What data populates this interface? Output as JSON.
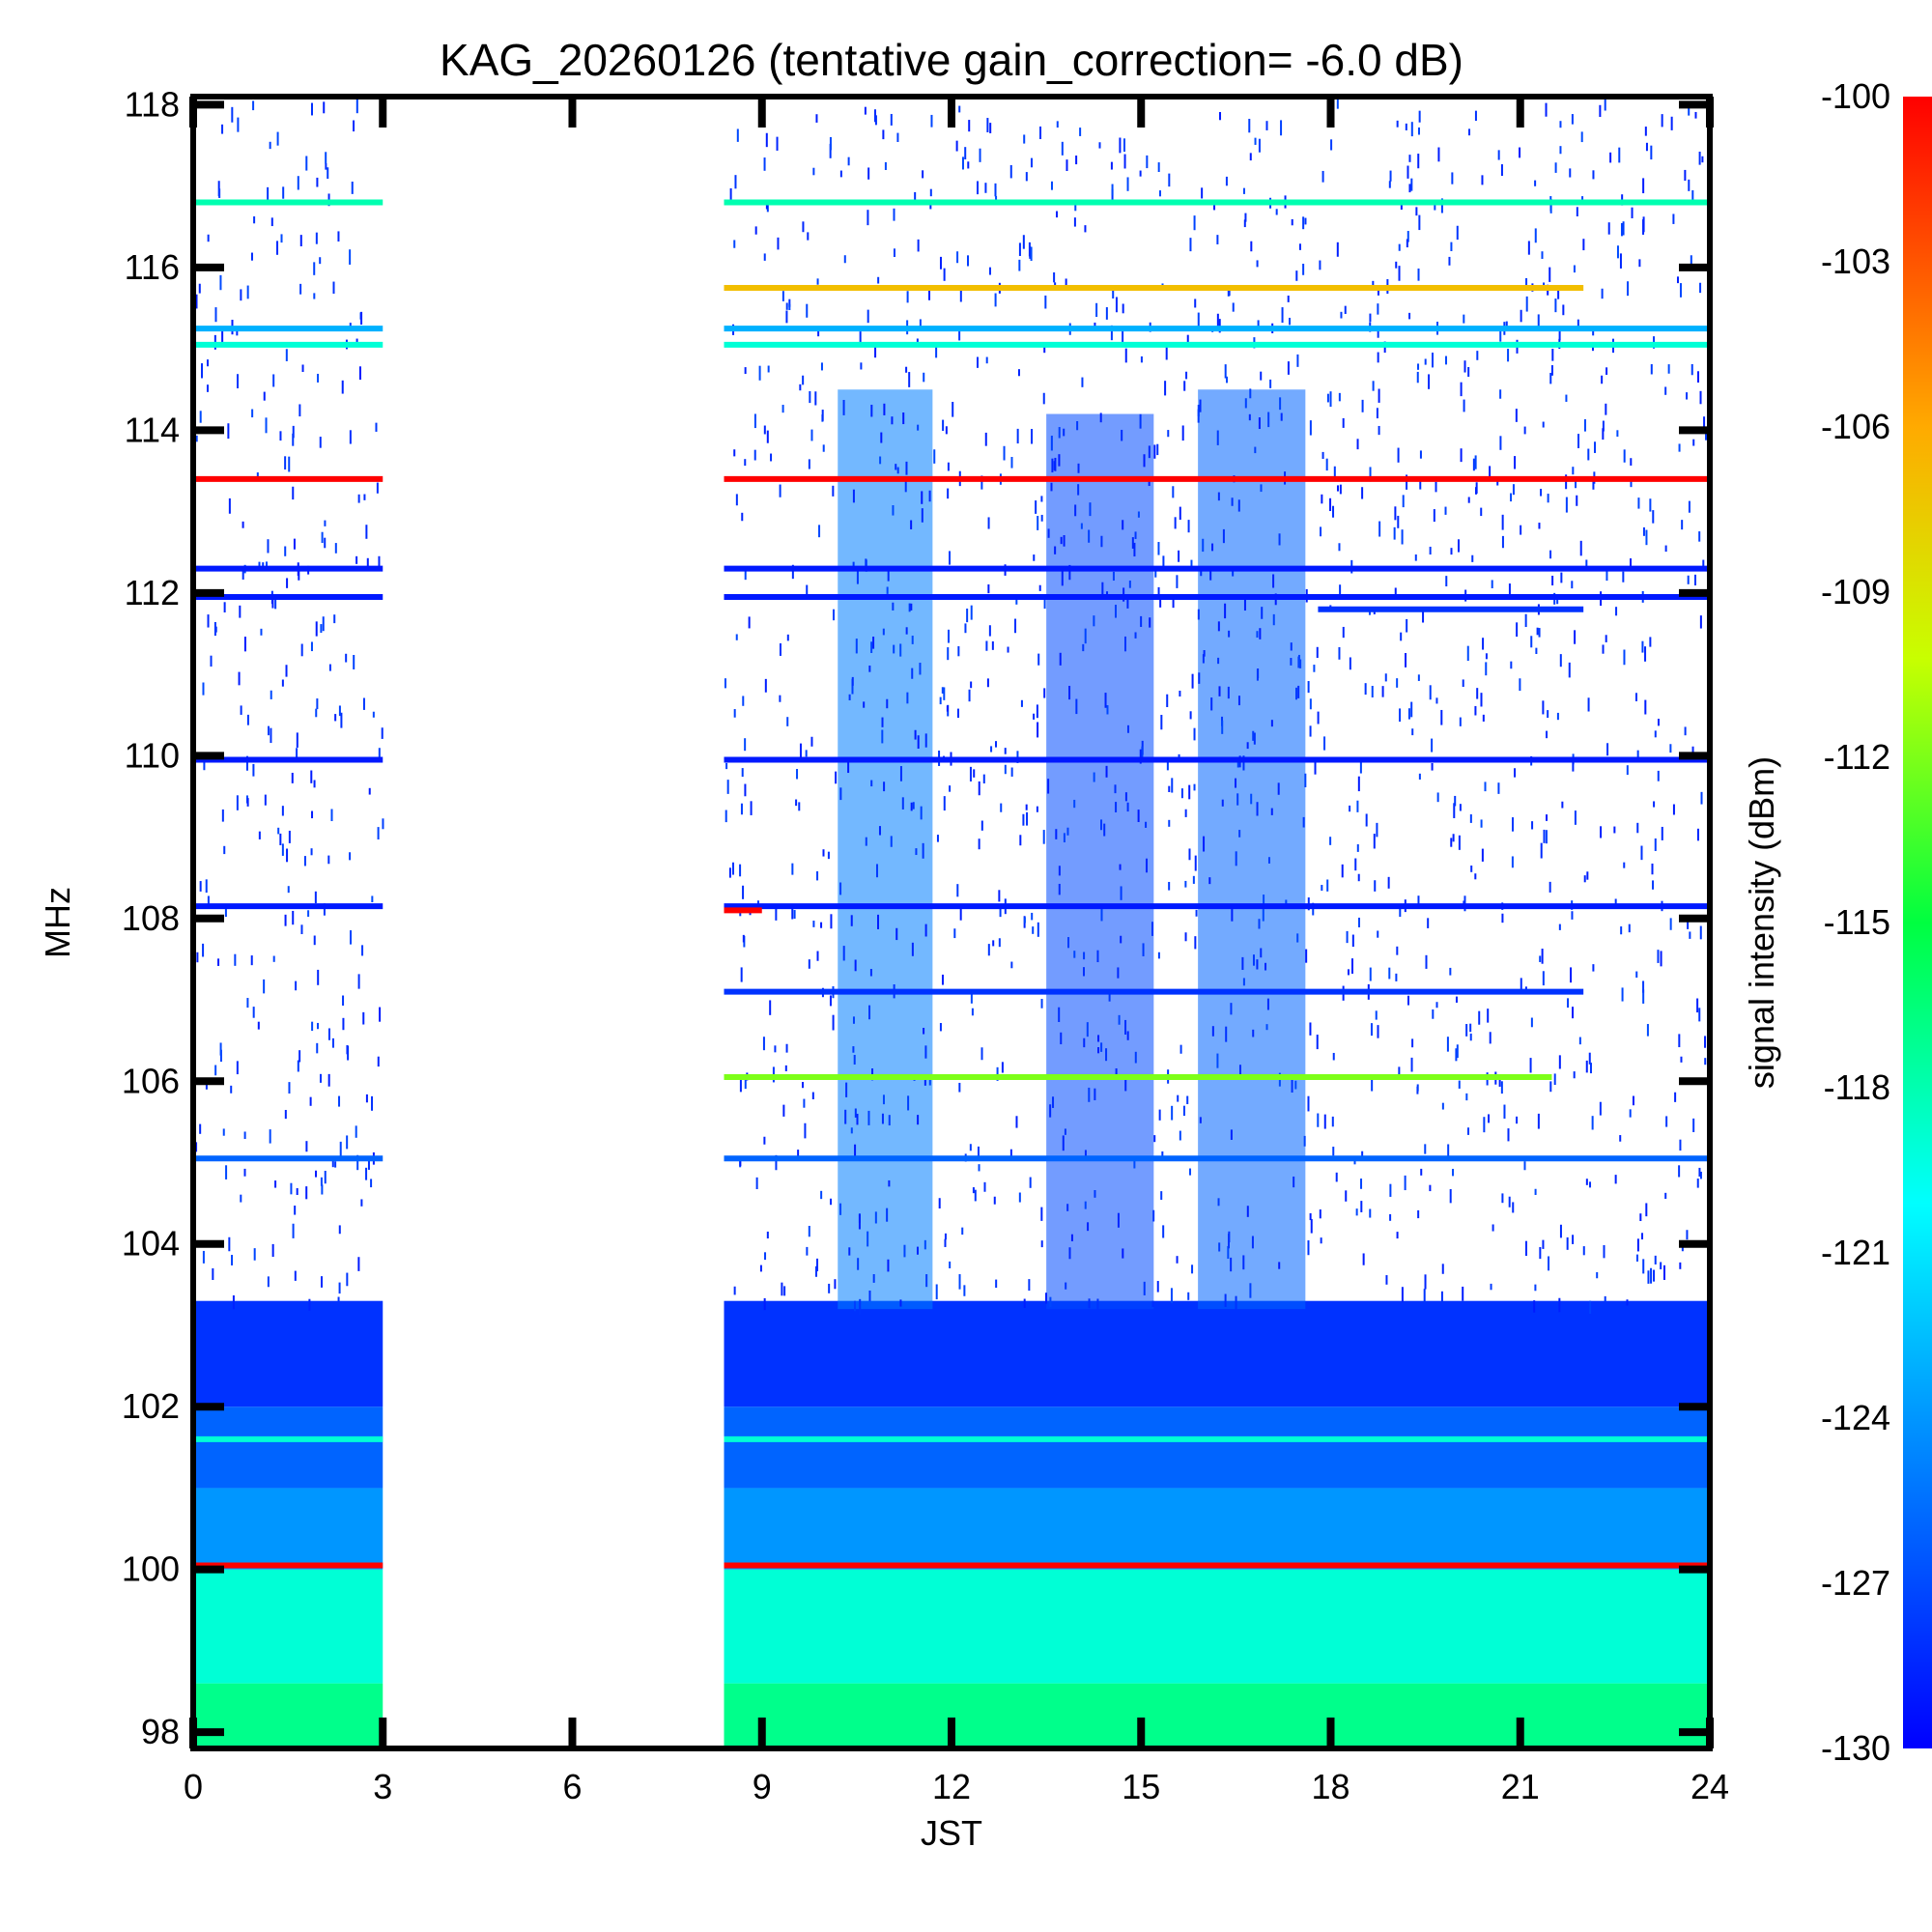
{
  "chart_data": {
    "type": "heatmap",
    "title": "KAG_20260126 (tentative gain_correction= -6.0 dB)",
    "xlabel": "JST",
    "ylabel": "MHz",
    "colorbar_label": "signal intensity (dBm)",
    "xlim": [
      0,
      24
    ],
    "ylim": [
      97.8,
      118.1
    ],
    "x_ticks": [
      "0",
      "3",
      "6",
      "9",
      "12",
      "15",
      "18",
      "21",
      "24"
    ],
    "y_ticks": [
      "98",
      "100",
      "102",
      "104",
      "106",
      "108",
      "110",
      "112",
      "114",
      "116",
      "118"
    ],
    "colorbar_ticks": [
      "-100",
      "-103",
      "-106",
      "-109",
      "-112",
      "-115",
      "-118",
      "-121",
      "-124",
      "-127",
      "-130"
    ],
    "color_range_dbm": [
      -130,
      -100
    ],
    "data_gaps": [
      {
        "from_jst": 3.0,
        "to_jst": 8.4
      }
    ],
    "observation_segments": [
      {
        "from_jst": 0.0,
        "to_jst": 3.0
      },
      {
        "from_jst": 8.4,
        "to_jst": 24.0
      }
    ],
    "steady_carriers": [
      {
        "freq_mhz": 116.8,
        "dbm": -118,
        "from_jst": 0.0,
        "to_jst": 24.0
      },
      {
        "freq_mhz": 115.75,
        "dbm": -107,
        "from_jst": 8.4,
        "to_jst": 22.0
      },
      {
        "freq_mhz": 115.25,
        "dbm": -123,
        "from_jst": 0.0,
        "to_jst": 24.0
      },
      {
        "freq_mhz": 115.05,
        "dbm": -119,
        "from_jst": 0.0,
        "to_jst": 24.0
      },
      {
        "freq_mhz": 113.4,
        "dbm": -100,
        "from_jst": 0.0,
        "to_jst": 24.0
      },
      {
        "freq_mhz": 112.3,
        "dbm": -129,
        "from_jst": 0.0,
        "to_jst": 24.0
      },
      {
        "freq_mhz": 111.95,
        "dbm": -129,
        "from_jst": 0.0,
        "to_jst": 24.0
      },
      {
        "freq_mhz": 111.8,
        "dbm": -128,
        "from_jst": 17.8,
        "to_jst": 22.0
      },
      {
        "freq_mhz": 109.95,
        "dbm": -129,
        "from_jst": 0.0,
        "to_jst": 24.0
      },
      {
        "freq_mhz": 108.15,
        "dbm": -129,
        "from_jst": 0.0,
        "to_jst": 24.0
      },
      {
        "freq_mhz": 108.1,
        "dbm": -100,
        "from_jst": 8.0,
        "to_jst": 9.0
      },
      {
        "freq_mhz": 107.1,
        "dbm": -128,
        "from_jst": 8.4,
        "to_jst": 22.0
      },
      {
        "freq_mhz": 106.05,
        "dbm": -112,
        "from_jst": 8.4,
        "to_jst": 21.5
      },
      {
        "freq_mhz": 105.05,
        "dbm": -126,
        "from_jst": 0.0,
        "to_jst": 24.0
      },
      {
        "freq_mhz": 101.6,
        "dbm": -119,
        "from_jst": 0.0,
        "to_jst": 24.0
      },
      {
        "freq_mhz": 100.05,
        "dbm": -100,
        "from_jst": 0.0,
        "to_jst": 24.0
      }
    ],
    "intensity_bands": [
      {
        "from_mhz": 97.8,
        "to_mhz": 98.6,
        "dbm": -117
      },
      {
        "from_mhz": 98.6,
        "to_mhz": 100.0,
        "dbm": -119
      },
      {
        "from_mhz": 100.0,
        "to_mhz": 101.0,
        "dbm": -124
      },
      {
        "from_mhz": 101.0,
        "to_mhz": 102.0,
        "dbm": -126
      },
      {
        "from_mhz": 102.0,
        "to_mhz": 103.3,
        "dbm": -128
      }
    ],
    "activity_blocks": [
      {
        "from_jst": 10.2,
        "to_jst": 11.7,
        "from_mhz": 103.2,
        "to_mhz": 114.5,
        "dbm": -125
      },
      {
        "from_jst": 13.5,
        "to_jst": 15.2,
        "from_mhz": 103.2,
        "to_mhz": 114.2,
        "dbm": -127
      },
      {
        "from_jst": 15.9,
        "to_jst": 17.6,
        "from_mhz": 103.2,
        "to_mhz": 114.5,
        "dbm": -126
      }
    ]
  }
}
